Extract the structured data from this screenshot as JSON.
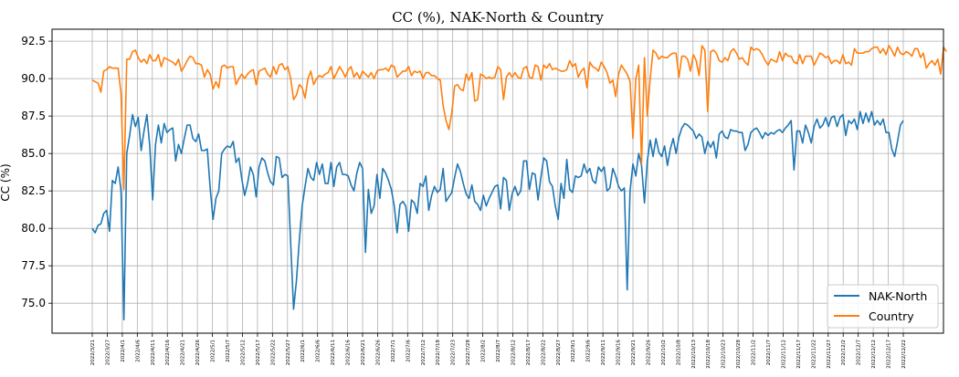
{
  "chart_data": {
    "type": "line",
    "title": "CC (%), NAK-North & Country",
    "xlabel": "",
    "ylabel": "CC (%)",
    "ylim": [
      73,
      93.3
    ],
    "yticks": [
      75.0,
      77.5,
      80.0,
      82.5,
      85.0,
      87.5,
      90.0,
      92.5
    ],
    "ytick_labels": [
      "75.0",
      "77.5",
      "80.0",
      "82.5",
      "85.0",
      "87.5",
      "90.0",
      "92.5"
    ],
    "xticks": [
      "2022/3/21",
      "2022/3/27",
      "2022/4/1",
      "2022/4/6",
      "2022/4/11",
      "2022/4/16",
      "2022/4/21",
      "2022/4/26",
      "2022/5/1",
      "2022/5/7",
      "2022/5/12",
      "2022/5/17",
      "2022/5/22",
      "2022/5/27",
      "2022/6/1",
      "2022/6/6",
      "2022/6/11",
      "2022/6/16",
      "2022/6/21",
      "2022/6/26",
      "2022/7/1",
      "2022/7/6",
      "2022/7/12",
      "2022/7/18",
      "2022/7/23",
      "2022/7/28",
      "2022/8/2",
      "2022/8/7",
      "2022/8/12",
      "2022/8/17",
      "2022/8/22",
      "2022/8/27",
      "2022/9/1",
      "2022/9/6",
      "2022/9/11",
      "2022/9/16",
      "2022/9/21",
      "2022/9/26",
      "2022/10/2",
      "2022/10/8",
      "2022/10/13",
      "2022/10/18",
      "2022/10/23",
      "2022/10/28",
      "2022/11/2",
      "2022/11/7",
      "2022/11/12",
      "2022/11/17",
      "2022/11/22",
      "2022/11/27",
      "2022/12/2",
      "2022/12/7",
      "2022/12/12",
      "2022/12/17",
      "2022/12/22"
    ],
    "grid": true,
    "legend_position": "lower-right",
    "series": [
      {
        "name": "NAK-North",
        "color": "#1f77b4",
        "values": [
          80.0,
          79.7,
          80.2,
          80.3,
          81.0,
          81.2,
          79.8,
          83.2,
          83.0,
          84.1,
          82.5,
          73.9,
          85.0,
          86.2,
          87.6,
          86.8,
          87.4,
          85.2,
          86.5,
          87.6,
          85.5,
          81.9,
          85.6,
          86.9,
          85.7,
          87.0,
          86.4,
          86.6,
          86.7,
          84.5,
          85.6,
          85.0,
          86.0,
          86.9,
          86.9,
          86.0,
          85.8,
          86.3,
          85.2,
          85.2,
          85.3,
          82.7,
          80.6,
          82.0,
          82.5,
          85.0,
          85.3,
          85.5,
          85.4,
          85.8,
          84.4,
          84.7,
          83.3,
          82.2,
          83.0,
          84.1,
          83.6,
          82.1,
          84.1,
          84.7,
          84.5,
          83.7,
          83.1,
          82.9,
          84.8,
          84.7,
          83.4,
          83.6,
          83.5,
          79.0,
          74.6,
          76.5,
          79.2,
          81.5,
          82.8,
          84.0,
          83.4,
          83.2,
          84.4,
          83.6,
          84.3,
          83.0,
          83.0,
          84.4,
          82.8,
          84.1,
          84.4,
          83.6,
          83.6,
          83.5,
          82.9,
          82.5,
          83.7,
          84.4,
          84.0,
          78.4,
          82.6,
          81.0,
          81.5,
          83.6,
          82.0,
          84.0,
          83.7,
          83.2,
          82.6,
          81.5,
          79.7,
          81.6,
          81.8,
          81.5,
          79.8,
          81.9,
          81.7,
          81.0,
          83.0,
          82.8,
          83.5,
          81.2,
          82.2,
          82.8,
          82.4,
          82.6,
          84.0,
          81.8,
          82.1,
          82.4,
          83.4,
          84.3,
          83.8,
          83.0,
          82.3,
          82.0,
          82.9,
          81.8,
          81.6,
          81.2,
          82.2,
          81.5,
          82.0,
          82.4,
          82.8,
          82.9,
          81.3,
          83.4,
          83.2,
          81.2,
          82.3,
          82.8,
          82.2,
          82.5,
          84.5,
          84.5,
          82.6,
          83.7,
          83.6,
          81.9,
          83.4,
          84.7,
          84.5,
          83.1,
          82.8,
          81.5,
          80.6,
          83.0,
          82.0,
          84.6,
          82.6,
          82.4,
          83.5,
          83.4,
          83.5,
          84.3,
          83.7,
          84.0,
          83.2,
          83.0,
          84.1,
          83.8,
          84.1,
          82.5,
          82.7,
          84.0,
          83.5,
          82.8,
          82.5,
          82.7,
          75.9,
          82.5,
          84.3,
          83.5,
          85.0,
          84.2,
          81.7,
          84.5,
          85.9,
          84.8,
          86.0,
          85.1,
          84.8,
          85.5,
          84.2,
          85.3,
          86.0,
          85.0,
          86.1,
          86.7,
          87.0,
          86.9,
          86.7,
          86.5,
          86.0,
          86.3,
          86.1,
          85.0,
          85.8,
          85.4,
          85.8,
          84.7,
          86.3,
          86.5,
          86.1,
          86.0,
          86.6,
          86.5,
          86.5,
          86.4,
          86.4,
          85.2,
          85.6,
          86.4,
          86.6,
          86.7,
          86.4,
          86.0,
          86.4,
          86.2,
          86.4,
          86.3,
          86.5,
          86.6,
          86.4,
          86.7,
          86.9,
          87.2,
          83.9,
          86.5,
          86.5,
          85.7,
          86.9,
          86.4,
          85.7,
          86.8,
          87.3,
          86.7,
          86.9,
          87.4,
          86.8,
          87.4,
          87.5,
          86.8,
          87.4,
          87.6,
          86.2,
          87.2,
          87.0,
          87.3,
          86.6,
          87.8,
          87.0,
          87.7,
          87.1,
          87.8,
          86.9,
          87.2,
          86.9,
          87.3,
          86.4,
          86.4,
          85.3,
          84.8,
          85.8,
          86.9,
          87.2
        ]
      },
      {
        "name": "Country",
        "color": "#ff7f0e",
        "values": [
          89.9,
          89.8,
          89.7,
          89.1,
          90.5,
          90.6,
          90.8,
          90.7,
          90.7,
          90.7,
          89.0,
          82.6,
          91.3,
          91.3,
          91.8,
          91.9,
          91.4,
          91.1,
          91.3,
          91.0,
          91.6,
          91.2,
          91.2,
          91.6,
          90.8,
          91.4,
          91.3,
          91.2,
          91.1,
          90.9,
          91.3,
          90.5,
          90.8,
          91.2,
          91.5,
          91.4,
          91.0,
          91.0,
          90.9,
          90.1,
          90.6,
          90.3,
          89.3,
          89.8,
          89.4,
          90.8,
          90.9,
          90.7,
          90.8,
          90.8,
          89.6,
          90.0,
          90.3,
          90.0,
          90.3,
          90.5,
          90.6,
          89.6,
          90.5,
          90.6,
          90.7,
          90.3,
          90.1,
          90.8,
          90.3,
          90.9,
          91.0,
          90.6,
          90.8,
          90.0,
          88.6,
          88.9,
          89.6,
          89.4,
          88.7,
          90.0,
          90.5,
          89.6,
          90.0,
          90.2,
          90.1,
          90.3,
          90.4,
          90.8,
          90.0,
          90.4,
          90.8,
          90.5,
          90.1,
          90.6,
          90.8,
          90.1,
          90.4,
          90.0,
          90.5,
          90.3,
          90.1,
          90.4,
          90.0,
          90.5,
          90.6,
          90.6,
          90.7,
          90.5,
          90.9,
          90.8,
          90.1,
          90.3,
          90.5,
          90.5,
          90.8,
          90.2,
          90.5,
          90.4,
          90.5,
          90.0,
          90.4,
          90.4,
          90.2,
          90.2,
          90.0,
          89.9,
          88.2,
          87.2,
          86.6,
          87.7,
          89.5,
          89.6,
          89.3,
          89.2,
          90.3,
          89.9,
          90.4,
          88.5,
          88.6,
          90.3,
          90.2,
          90.0,
          90.1,
          90.0,
          90.1,
          90.8,
          90.6,
          88.6,
          90.1,
          90.4,
          90.1,
          90.4,
          90.1,
          90.0,
          90.7,
          90.8,
          90.1,
          90.0,
          90.9,
          90.8,
          89.9,
          90.9,
          90.7,
          91.0,
          90.6,
          90.7,
          90.6,
          90.5,
          90.5,
          90.6,
          91.2,
          90.8,
          91.0,
          90.1,
          90.5,
          90.7,
          89.4,
          91.1,
          90.8,
          90.7,
          90.5,
          91.1,
          90.8,
          90.4,
          89.7,
          89.9,
          88.8,
          90.3,
          90.9,
          90.6,
          90.3,
          89.8,
          86.0,
          90.0,
          90.9,
          84.3,
          91.4,
          87.5,
          90.0,
          91.9,
          91.7,
          91.3,
          91.5,
          91.4,
          91.4,
          91.6,
          91.7,
          91.7,
          90.1,
          91.5,
          91.5,
          91.3,
          90.5,
          91.6,
          91.2,
          90.2,
          92.2,
          91.9,
          87.8,
          91.8,
          91.9,
          91.7,
          91.2,
          91.1,
          91.4,
          91.2,
          91.8,
          92.0,
          91.7,
          91.3,
          91.4,
          91.1,
          90.9,
          92.1,
          91.9,
          92.0,
          91.9,
          91.6,
          91.2,
          90.9,
          91.3,
          91.2,
          91.1,
          91.8,
          91.2,
          91.7,
          91.5,
          91.5,
          91.1,
          91.0,
          91.6,
          91.0,
          91.5,
          91.5,
          91.5,
          90.9,
          91.3,
          91.7,
          91.6,
          91.4,
          91.5,
          91.0,
          91.2,
          91.2,
          91.0,
          91.6,
          91.0,
          91.1,
          90.9,
          92.0,
          91.7,
          91.7,
          91.7,
          91.8,
          91.8,
          92.0,
          92.1,
          92.1,
          91.7,
          92.0,
          91.6,
          92.2,
          91.9,
          91.5,
          92.1,
          91.7,
          91.6,
          91.8,
          91.7,
          91.5,
          92.0,
          92.0,
          91.4,
          91.7,
          90.7,
          91.0,
          91.2,
          90.9,
          91.3,
          90.3,
          92.1,
          91.8
        ]
      }
    ]
  }
}
